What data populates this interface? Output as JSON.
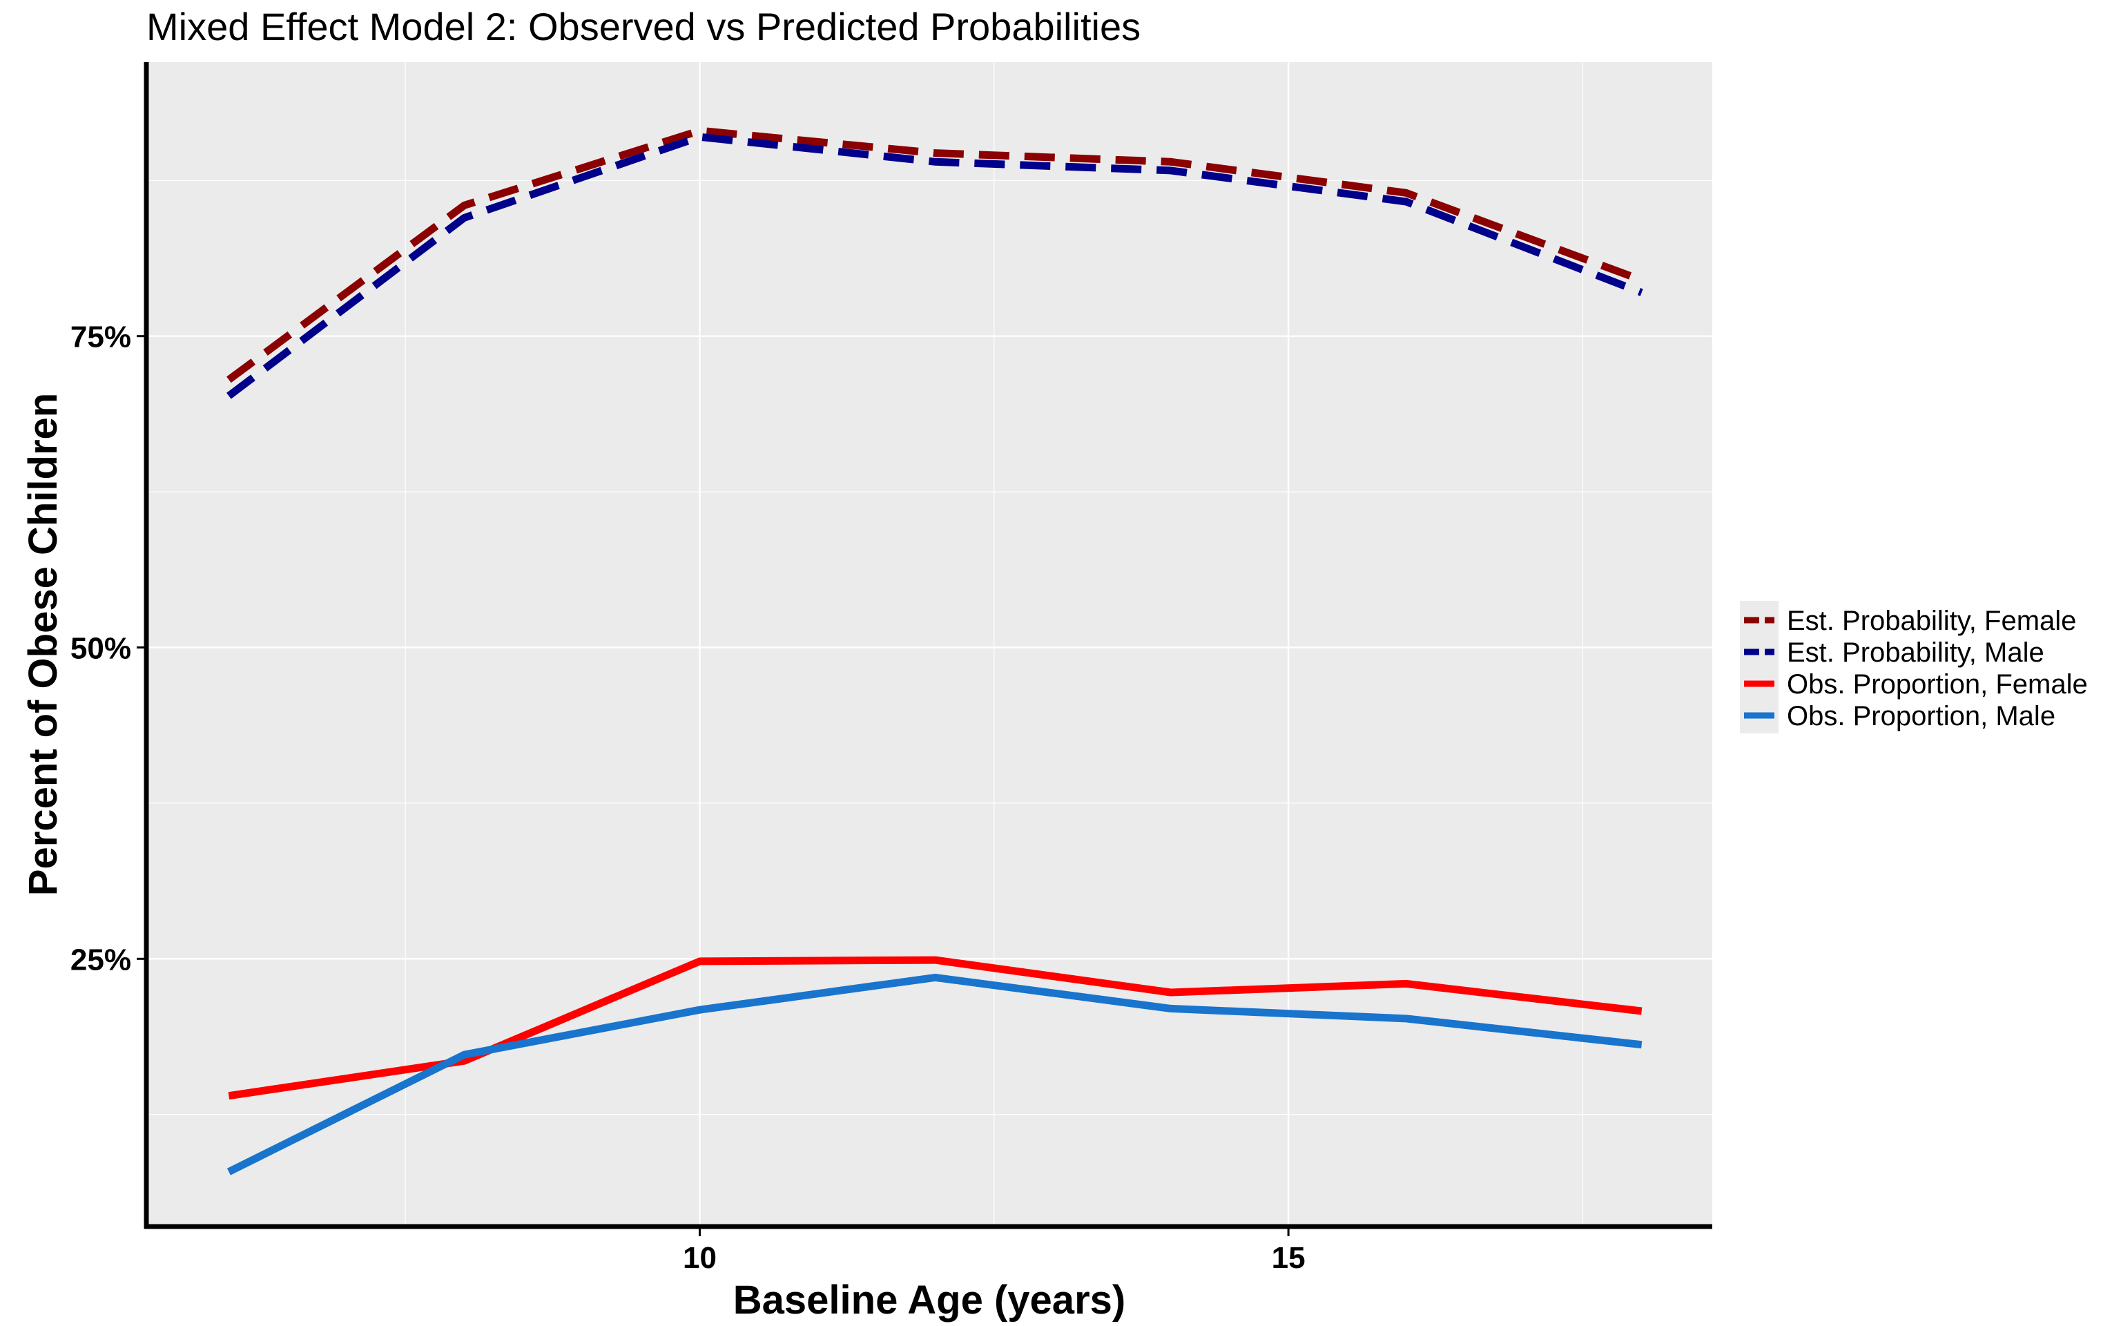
{
  "chart_data": {
    "type": "line",
    "title": "Mixed Effect Model 2: Observed vs Predicted Probabilities",
    "xlabel": "Baseline Age (years)",
    "ylabel": "Percent of Obese Children",
    "x": [
      6,
      8,
      10,
      12,
      14,
      16,
      18
    ],
    "xlim": [
      5.3,
      18.6
    ],
    "ylim": [
      0.035,
      0.97
    ],
    "x_ticks": [
      10,
      15
    ],
    "x_tick_labels": [
      "10",
      "15"
    ],
    "y_ticks": [
      0.25,
      0.5,
      0.75
    ],
    "y_tick_labels": [
      "25%",
      "50%",
      "75%"
    ],
    "grid": true,
    "legend_position": "right",
    "series": [
      {
        "name": "Est. Probability, Female",
        "values": [
          0.715,
          0.855,
          0.915,
          0.897,
          0.89,
          0.865,
          0.795
        ],
        "color": "#8B0000",
        "dash": "dashed"
      },
      {
        "name": "Est. Probability, Male",
        "values": [
          0.702,
          0.845,
          0.91,
          0.89,
          0.883,
          0.858,
          0.785
        ],
        "color": "#00008B",
        "dash": "dashed"
      },
      {
        "name": "Obs. Proportion, Female",
        "values": [
          0.14,
          0.168,
          0.248,
          0.249,
          0.223,
          0.23,
          0.208
        ],
        "color": "#FF0000",
        "dash": "solid"
      },
      {
        "name": "Obs. Proportion, Male",
        "values": [
          0.079,
          0.173,
          0.209,
          0.235,
          0.21,
          0.202,
          0.181
        ],
        "color": "#1874CD",
        "dash": "solid"
      }
    ]
  }
}
